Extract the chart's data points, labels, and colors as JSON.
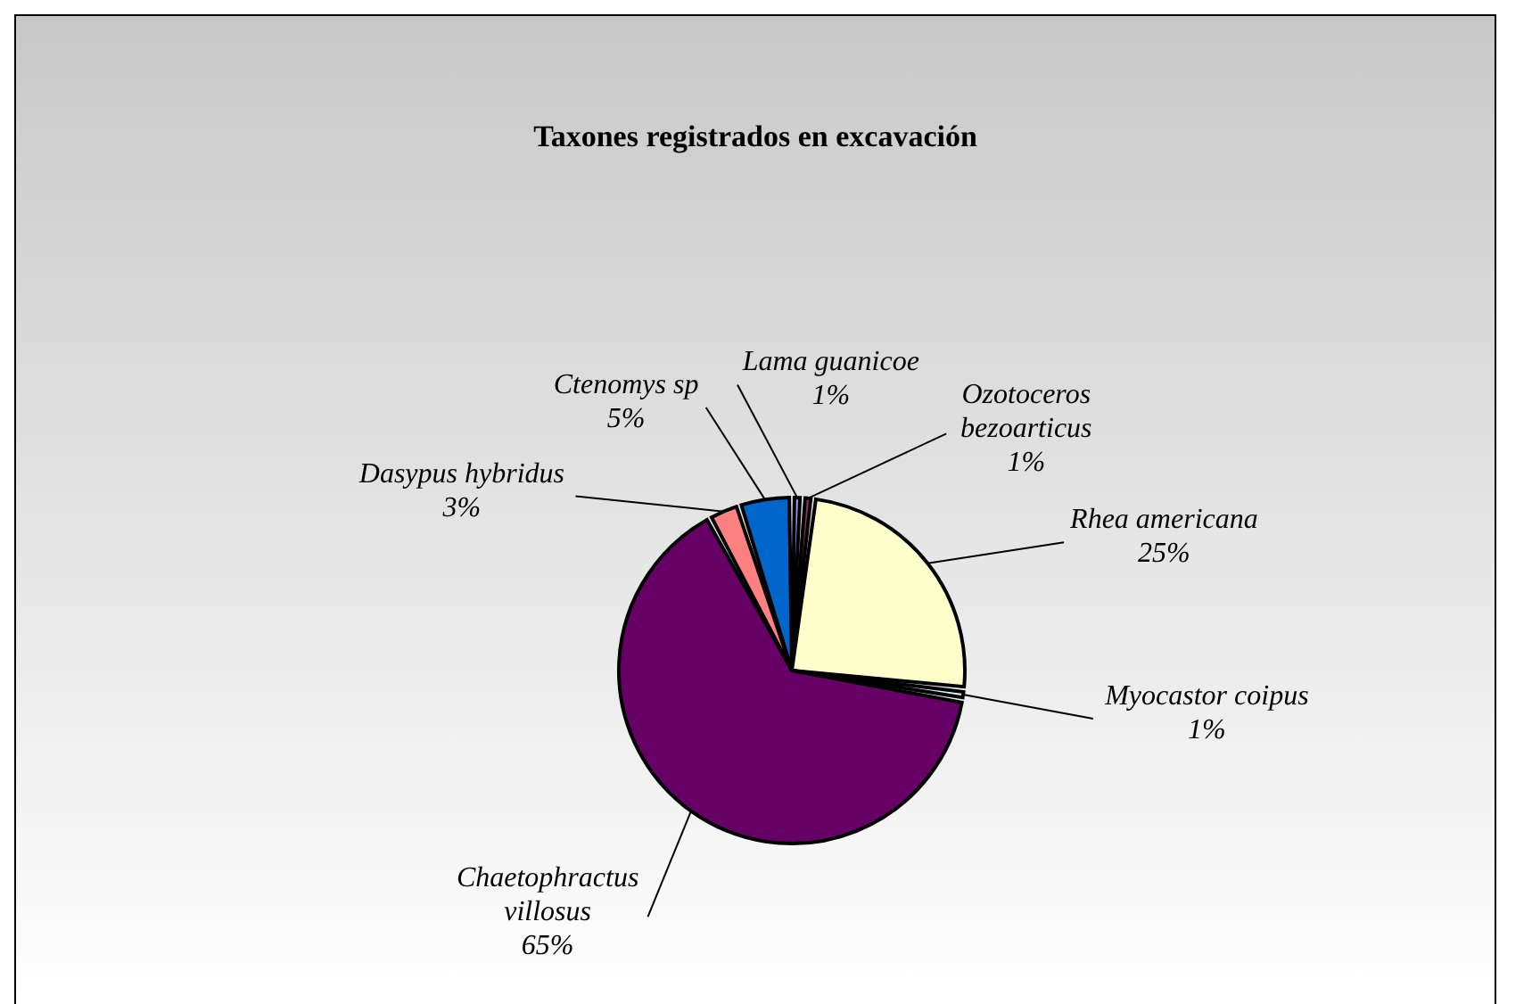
{
  "chart_data": {
    "type": "pie",
    "title": "Taxones registrados en excavación",
    "categories": [
      "Lama guanicoe",
      "Ozotoceros bezoarticus",
      "Rhea americana",
      "Myocastor coipus",
      "Chaetophractus villosus",
      "Dasypus hybridus",
      "Ctenomys sp"
    ],
    "values": [
      1,
      1,
      25,
      1,
      65,
      3,
      5
    ],
    "value_labels": [
      "1%",
      "1%",
      "25%",
      "1%",
      "65%",
      "3%",
      "5%"
    ],
    "colors": [
      "#9999ff",
      "#993366",
      "#ffffcc",
      "#ccffff",
      "#660066",
      "#ff8080",
      "#0066cc"
    ],
    "legend": false
  }
}
